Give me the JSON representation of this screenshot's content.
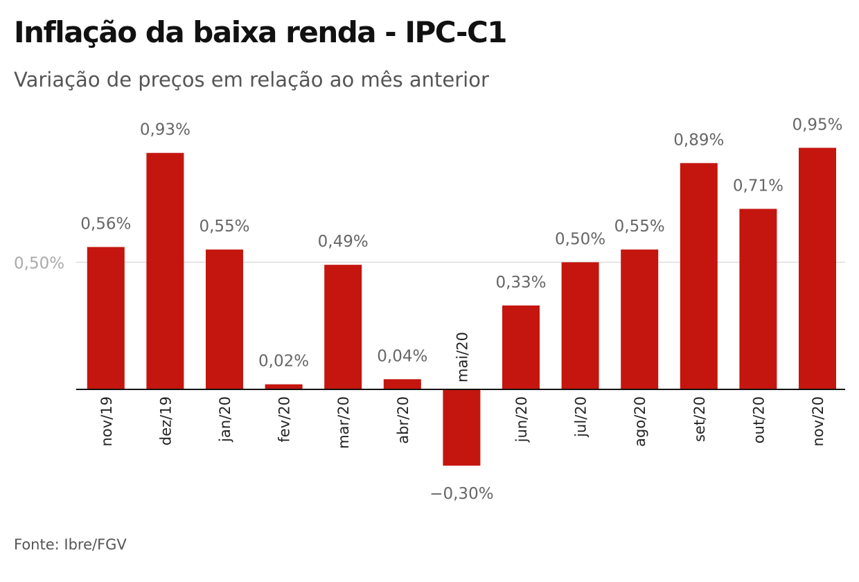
{
  "header": {
    "title": "Inflação da baixa renda - IPC-C1",
    "subtitle": "Variação de preços em relação ao mês anterior"
  },
  "footer": {
    "source": "Fonte: Ibre/FGV"
  },
  "colors": {
    "bar": "#c4160f",
    "value_label": "#666666",
    "tick_label": "#aaaaaa",
    "gridline": "#dddddd",
    "axis": "#111111"
  },
  "chart_data": {
    "type": "bar",
    "title": "Inflação da baixa renda - IPC-C1",
    "subtitle": "Variação de preços em relação ao mês anterior",
    "categories": [
      "nov/19",
      "dez/19",
      "jan/20",
      "fev/20",
      "mar/20",
      "abr/20",
      "mai/20",
      "jun/20",
      "jul/20",
      "ago/20",
      "set/20",
      "out/20",
      "nov/20"
    ],
    "values": [
      0.56,
      0.93,
      0.55,
      0.02,
      0.49,
      0.04,
      -0.3,
      0.33,
      0.5,
      0.55,
      0.89,
      0.71,
      0.95
    ],
    "value_labels": [
      "0,56%",
      "0,93%",
      "0,55%",
      "0,02%",
      "0,49%",
      "0,04%",
      "−0,30%",
      "0,33%",
      "0,50%",
      "0,55%",
      "0,89%",
      "0,71%",
      "0,95%"
    ],
    "y_ticks": [
      0.5
    ],
    "y_tick_labels": [
      "0,50%"
    ],
    "ylim": [
      -0.3,
      0.95
    ],
    "grid": true,
    "xlabel": "",
    "ylabel": ""
  }
}
